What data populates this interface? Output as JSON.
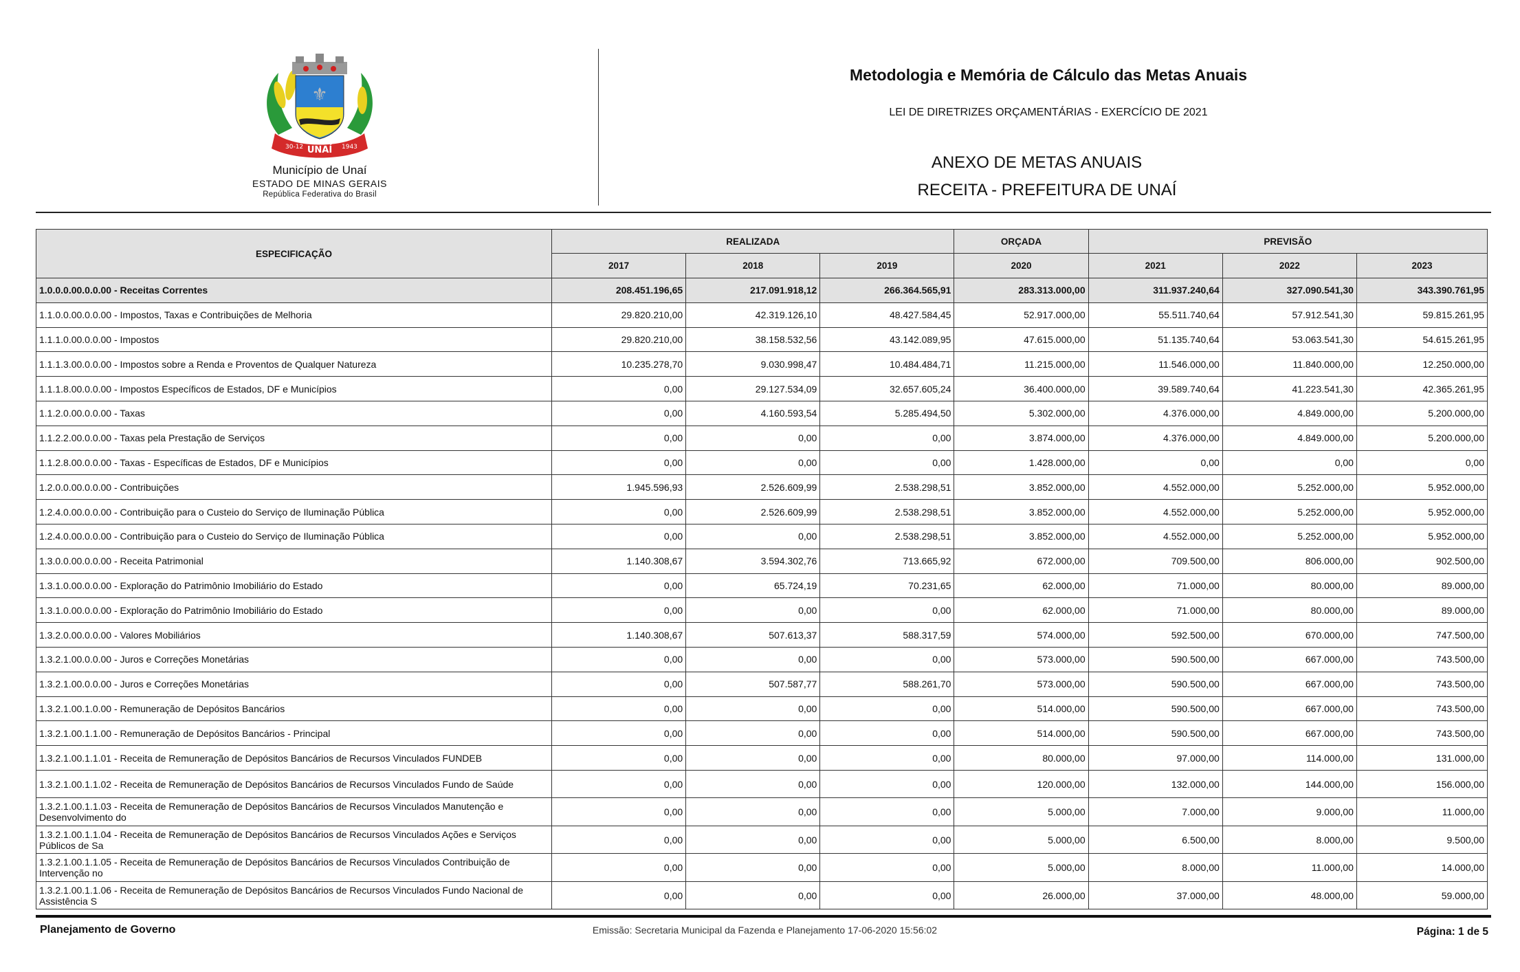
{
  "header": {
    "municipality": "Município de Unaí",
    "state": "ESTADO DE MINAS GERAIS",
    "country": "República Federativa do Brasil",
    "crest": {
      "banner_text": "UNAÍ",
      "date_left": "30-12",
      "date_right": "1943"
    },
    "title": "Metodologia e Memória de Cálculo das Metas Anuais",
    "subtitle": "LEI DE DIRETRIZES ORÇAMENTÁRIAS - EXERCÍCIO DE 2021",
    "annex": "ANEXO DE METAS ANUAIS",
    "scope": "RECEITA - PREFEITURA DE UNAÍ"
  },
  "table": {
    "spec_header": "ESPECIFICAÇÃO",
    "groups": [
      "REALIZADA",
      "ORÇADA",
      "PREVISÃO"
    ],
    "years": [
      "2017",
      "2018",
      "2019",
      "2020",
      "2021",
      "2022",
      "2023"
    ],
    "rows": [
      {
        "spec": "1.0.0.0.00.0.0.00 - Receitas Correntes",
        "v": [
          "208.451.196,65",
          "217.091.918,12",
          "266.364.565,91",
          "283.313.000,00",
          "311.937.240,64",
          "327.090.541,30",
          "343.390.761,95"
        ]
      },
      {
        "spec": "1.1.0.0.00.0.0.00 - Impostos, Taxas e Contribuições de Melhoria",
        "v": [
          "29.820.210,00",
          "42.319.126,10",
          "48.427.584,45",
          "52.917.000,00",
          "55.511.740,64",
          "57.912.541,30",
          "59.815.261,95"
        ]
      },
      {
        "spec": "1.1.1.0.00.0.0.00 - Impostos",
        "v": [
          "29.820.210,00",
          "38.158.532,56",
          "43.142.089,95",
          "47.615.000,00",
          "51.135.740,64",
          "53.063.541,30",
          "54.615.261,95"
        ]
      },
      {
        "spec": "1.1.1.3.00.0.0.00 - Impostos sobre a Renda e Proventos de Qualquer Natureza",
        "v": [
          "10.235.278,70",
          "9.030.998,47",
          "10.484.484,71",
          "11.215.000,00",
          "11.546.000,00",
          "11.840.000,00",
          "12.250.000,00"
        ]
      },
      {
        "spec": "1.1.1.8.00.0.0.00 - Impostos Específicos de Estados, DF e Municípios",
        "v": [
          "0,00",
          "29.127.534,09",
          "32.657.605,24",
          "36.400.000,00",
          "39.589.740,64",
          "41.223.541,30",
          "42.365.261,95"
        ]
      },
      {
        "spec": "1.1.2.0.00.0.0.00 - Taxas",
        "v": [
          "0,00",
          "4.160.593,54",
          "5.285.494,50",
          "5.302.000,00",
          "4.376.000,00",
          "4.849.000,00",
          "5.200.000,00"
        ]
      },
      {
        "spec": "1.1.2.2.00.0.0.00 - Taxas pela Prestação de Serviços",
        "v": [
          "0,00",
          "0,00",
          "0,00",
          "3.874.000,00",
          "4.376.000,00",
          "4.849.000,00",
          "5.200.000,00"
        ]
      },
      {
        "spec": "1.1.2.8.00.0.0.00 - Taxas - Específicas de Estados, DF e Municípios",
        "v": [
          "0,00",
          "0,00",
          "0,00",
          "1.428.000,00",
          "0,00",
          "0,00",
          "0,00"
        ]
      },
      {
        "spec": "1.2.0.0.00.0.0.00 - Contribuições",
        "v": [
          "1.945.596,93",
          "2.526.609,99",
          "2.538.298,51",
          "3.852.000,00",
          "4.552.000,00",
          "5.252.000,00",
          "5.952.000,00"
        ]
      },
      {
        "spec": "1.2.4.0.00.0.0.00 - Contribuição para o Custeio do Serviço de Iluminação Pública",
        "v": [
          "0,00",
          "2.526.609,99",
          "2.538.298,51",
          "3.852.000,00",
          "4.552.000,00",
          "5.252.000,00",
          "5.952.000,00"
        ]
      },
      {
        "spec": "1.2.4.0.00.0.0.00 - Contribuição para o Custeio do Serviço de Iluminação Pública",
        "v": [
          "0,00",
          "0,00",
          "2.538.298,51",
          "3.852.000,00",
          "4.552.000,00",
          "5.252.000,00",
          "5.952.000,00"
        ]
      },
      {
        "spec": "1.3.0.0.00.0.0.00 - Receita Patrimonial",
        "v": [
          "1.140.308,67",
          "3.594.302,76",
          "713.665,92",
          "672.000,00",
          "709.500,00",
          "806.000,00",
          "902.500,00"
        ]
      },
      {
        "spec": "1.3.1.0.00.0.0.00 - Exploração do Patrimônio Imobiliário do Estado",
        "v": [
          "0,00",
          "65.724,19",
          "70.231,65",
          "62.000,00",
          "71.000,00",
          "80.000,00",
          "89.000,00"
        ]
      },
      {
        "spec": "1.3.1.0.00.0.0.00 - Exploração do Patrimônio Imobiliário do Estado",
        "v": [
          "0,00",
          "0,00",
          "0,00",
          "62.000,00",
          "71.000,00",
          "80.000,00",
          "89.000,00"
        ]
      },
      {
        "spec": "1.3.2.0.00.0.0.00 - Valores Mobiliários",
        "v": [
          "1.140.308,67",
          "507.613,37",
          "588.317,59",
          "574.000,00",
          "592.500,00",
          "670.000,00",
          "747.500,00"
        ]
      },
      {
        "spec": "1.3.2.1.00.0.0.00 - Juros e Correções Monetárias",
        "v": [
          "0,00",
          "0,00",
          "0,00",
          "573.000,00",
          "590.500,00",
          "667.000,00",
          "743.500,00"
        ]
      },
      {
        "spec": "1.3.2.1.00.0.0.00 - Juros e Correções Monetárias",
        "v": [
          "0,00",
          "507.587,77",
          "588.261,70",
          "573.000,00",
          "590.500,00",
          "667.000,00",
          "743.500,00"
        ]
      },
      {
        "spec": "1.3.2.1.00.1.0.00 - Remuneração de Depósitos Bancários",
        "v": [
          "0,00",
          "0,00",
          "0,00",
          "514.000,00",
          "590.500,00",
          "667.000,00",
          "743.500,00"
        ]
      },
      {
        "spec": "1.3.2.1.00.1.1.00 - Remuneração de Depósitos Bancários - Principal",
        "v": [
          "0,00",
          "0,00",
          "0,00",
          "514.000,00",
          "590.500,00",
          "667.000,00",
          "743.500,00"
        ]
      },
      {
        "spec": "1.3.2.1.00.1.1.01 - Receita de Remuneração de Depósitos Bancários de Recursos Vinculados FUNDEB",
        "v": [
          "0,00",
          "0,00",
          "0,00",
          "80.000,00",
          "97.000,00",
          "114.000,00",
          "131.000,00"
        ]
      },
      {
        "spec": "1.3.2.1.00.1.1.02 - Receita de Remuneração de Depósitos Bancários de Recursos Vinculados Fundo de Saúde",
        "v": [
          "0,00",
          "0,00",
          "0,00",
          "120.000,00",
          "132.000,00",
          "144.000,00",
          "156.000,00"
        ]
      },
      {
        "spec": "1.3.2.1.00.1.1.03 - Receita de Remuneração de Depósitos Bancários de Recursos Vinculados Manutenção e Desenvolvimento do",
        "v": [
          "0,00",
          "0,00",
          "0,00",
          "5.000,00",
          "7.000,00",
          "9.000,00",
          "11.000,00"
        ]
      },
      {
        "spec": "1.3.2.1.00.1.1.04 - Receita de Remuneração de Depósitos Bancários de Recursos Vinculados Ações e Serviços Públicos de Sa",
        "v": [
          "0,00",
          "0,00",
          "0,00",
          "5.000,00",
          "6.500,00",
          "8.000,00",
          "9.500,00"
        ]
      },
      {
        "spec": "1.3.2.1.00.1.1.05 - Receita de Remuneração de Depósitos Bancários de Recursos Vinculados Contribuição de Intervenção no",
        "v": [
          "0,00",
          "0,00",
          "0,00",
          "5.000,00",
          "8.000,00",
          "11.000,00",
          "14.000,00"
        ]
      },
      {
        "spec": "1.3.2.1.00.1.1.06 - Receita de Remuneração de Depósitos Bancários de Recursos Vinculados Fundo Nacional de Assistência S",
        "v": [
          "0,00",
          "0,00",
          "0,00",
          "26.000,00",
          "37.000,00",
          "48.000,00",
          "59.000,00"
        ]
      }
    ]
  },
  "footer": {
    "left": "Planejamento de Governo",
    "center": "Emissão: Secretaria Municipal da Fazenda e Planejamento 17-06-2020 15:56:02",
    "right": "Página: 1 de 5"
  }
}
